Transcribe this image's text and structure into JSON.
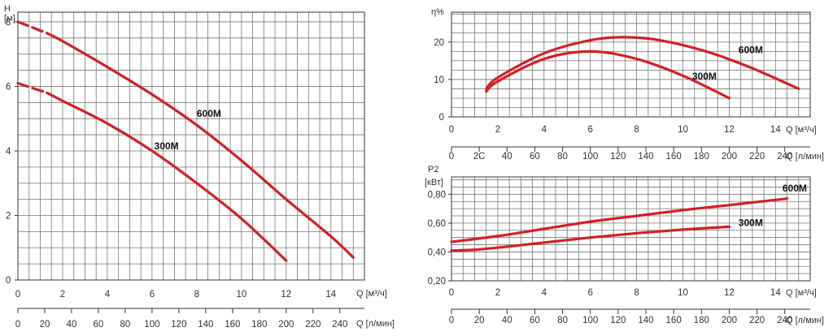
{
  "chart_data": [
    {
      "type": "line",
      "title": "",
      "ylabel": "H",
      "yunit": "[м]",
      "xlabel": "Q [м³/ч]",
      "xlabel2": "Q [л/мин]",
      "xlim": [
        0,
        15.5
      ],
      "ylim": [
        0,
        8.3
      ],
      "xticks": [
        0,
        2,
        4,
        6,
        8,
        10,
        12,
        14
      ],
      "xticks2": [
        0,
        20,
        40,
        60,
        80,
        100,
        120,
        140,
        160,
        180,
        200,
        220,
        240
      ],
      "yticks": [
        0,
        2,
        4,
        6,
        8
      ],
      "grid": true,
      "color": "#d42027",
      "series": [
        {
          "name": "600M",
          "dashed_until": 1.3,
          "x": [
            0,
            1.3,
            2,
            4,
            6,
            8,
            10,
            12,
            14,
            15
          ],
          "y": [
            8.0,
            7.65,
            7.4,
            6.6,
            5.75,
            4.8,
            3.7,
            2.5,
            1.35,
            0.7
          ]
        },
        {
          "name": "300M",
          "dashed_until": 1.3,
          "x": [
            0,
            1.3,
            2,
            4,
            6,
            8,
            10,
            12
          ],
          "y": [
            6.1,
            5.8,
            5.55,
            4.85,
            4.0,
            3.0,
            1.9,
            0.6
          ]
        }
      ],
      "labels": [
        {
          "name": "600M",
          "x": 8.0,
          "y": 5.05
        },
        {
          "name": "300M",
          "x": 6.1,
          "y": 4.05
        }
      ]
    },
    {
      "type": "line",
      "title": "",
      "ylabel": "η%",
      "xlabel": "Q [м³/ч]",
      "xlabel2": "Q [л/мин]",
      "xlim": [
        0,
        15.5
      ],
      "ylim": [
        0,
        28
      ],
      "xticks": [
        0,
        2,
        4,
        6,
        8,
        10,
        12,
        14
      ],
      "xticks2": [
        0,
        20,
        40,
        60,
        80,
        100,
        120,
        140,
        160,
        180,
        200,
        220,
        240
      ],
      "xticks2_labels": [
        "0",
        "2C",
        "40",
        "60",
        "80",
        "100",
        "120",
        "140",
        "160",
        "180",
        "200",
        "220",
        "240"
      ],
      "yticks": [
        0,
        10,
        20
      ],
      "grid": true,
      "color": "#d42027",
      "series": [
        {
          "name": "600M",
          "x": [
            1.5,
            2,
            4,
            6,
            7.5,
            9,
            11,
            13,
            15
          ],
          "y": [
            7.5,
            10.5,
            17.0,
            20.5,
            21.3,
            20.5,
            17.5,
            13.0,
            7.5
          ]
        },
        {
          "name": "300M",
          "x": [
            1.5,
            2,
            4,
            6,
            8,
            10,
            12
          ],
          "y": [
            6.8,
            9.5,
            15.5,
            17.5,
            15.5,
            11.0,
            5.0
          ]
        }
      ],
      "labels": [
        {
          "name": "600M",
          "x": 12.4,
          "y": 17.0
        },
        {
          "name": "300M",
          "x": 10.4,
          "y": 10.0
        }
      ]
    },
    {
      "type": "line",
      "title": "",
      "ylabel": "P2",
      "yunit": "[кВт]",
      "xlabel": "Q [м³/ч]",
      "xlabel2": "Q [л/мин]",
      "xlim": [
        0,
        15.5
      ],
      "ylim": [
        0.2,
        0.92
      ],
      "xticks": [
        0,
        2,
        4,
        6,
        8,
        10,
        12,
        14
      ],
      "xticks2": [
        0,
        20,
        40,
        60,
        80,
        100,
        120,
        140,
        160,
        180,
        200,
        220,
        240
      ],
      "yticks": [
        0.2,
        0.4,
        0.6,
        0.8
      ],
      "ytick_labels": [
        "0,20",
        "0,40",
        "0,60",
        "0,80"
      ],
      "grid": true,
      "color": "#d42027",
      "series": [
        {
          "name": "600M",
          "x": [
            0,
            2,
            4,
            6,
            8,
            10,
            12,
            14.5
          ],
          "y": [
            0.47,
            0.51,
            0.56,
            0.61,
            0.65,
            0.69,
            0.725,
            0.77
          ]
        },
        {
          "name": "300M",
          "x": [
            0,
            1,
            2,
            4,
            6,
            8,
            10,
            12
          ],
          "y": [
            0.41,
            0.415,
            0.43,
            0.465,
            0.5,
            0.53,
            0.555,
            0.575
          ]
        }
      ],
      "labels": [
        {
          "name": "600M",
          "x": 14.3,
          "y": 0.82
        },
        {
          "name": "300M",
          "x": 12.4,
          "y": 0.58
        }
      ]
    }
  ]
}
